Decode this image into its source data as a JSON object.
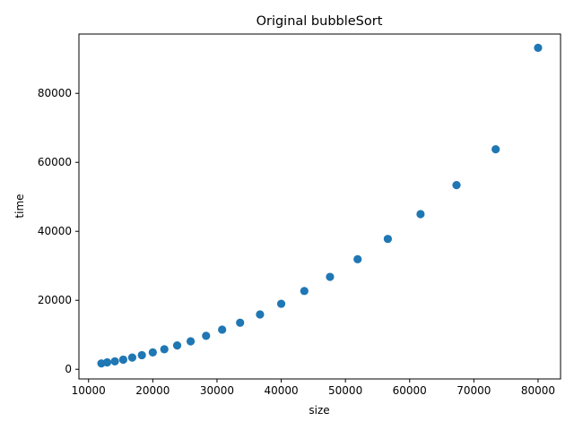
{
  "chart_data": {
    "type": "scatter",
    "title": "Original bubbleSort",
    "xlabel": "size",
    "ylabel": "time",
    "xlim": [
      8500,
      83500
    ],
    "ylim": [
      -2800,
      97200
    ],
    "xticks": [
      10000,
      20000,
      30000,
      40000,
      50000,
      60000,
      70000,
      80000
    ],
    "yticks": [
      0,
      20000,
      40000,
      60000,
      80000
    ],
    "grid": false,
    "marker_color": "#1f77b4",
    "series": [
      {
        "x": [
          12000,
          12900,
          14100,
          15400,
          16800,
          18300,
          20000,
          21800,
          23800,
          25900,
          28300,
          30800,
          33600,
          36700,
          40000,
          43600,
          47600,
          51900,
          56600,
          61700,
          67300,
          73400,
          80000
        ],
        "y": [
          1700,
          2000,
          2300,
          2800,
          3400,
          4100,
          4900,
          5800,
          6900,
          8100,
          9700,
          11500,
          13500,
          15900,
          19000,
          22700,
          26800,
          31900,
          37800,
          45000,
          53400,
          63800,
          93200
        ]
      }
    ]
  }
}
